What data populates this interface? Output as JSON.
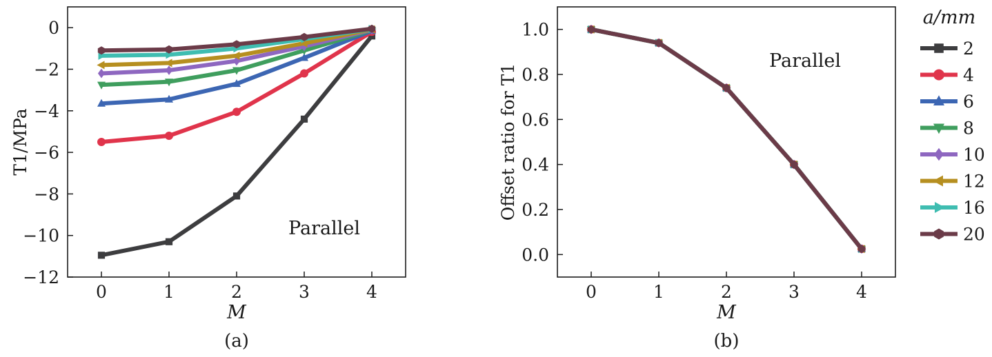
{
  "chart_data": [
    {
      "type": "line",
      "caption": "(a)",
      "xlabel": "M",
      "ylabel": "T1/MPa",
      "annotation": "Parallel",
      "x": [
        0,
        1,
        2,
        3,
        4
      ],
      "xlim": [
        -0.5,
        4.5
      ],
      "ylim": [
        -12,
        1
      ],
      "xticks": [
        "0",
        "1",
        "2",
        "3",
        "4"
      ],
      "yticks": [
        0,
        -2,
        -4,
        -6,
        -8,
        -10,
        -12
      ],
      "ytick_labels": [
        "0",
        "−2",
        "−4",
        "−6",
        "−8",
        "−10",
        "−12"
      ],
      "grid": false,
      "series": [
        {
          "name": "2",
          "values": [
            -10.95,
            -10.3,
            -8.1,
            -4.4,
            -0.4
          ]
        },
        {
          "name": "4",
          "values": [
            -5.5,
            -5.2,
            -4.05,
            -2.2,
            -0.2
          ]
        },
        {
          "name": "6",
          "values": [
            -3.65,
            -3.45,
            -2.7,
            -1.45,
            -0.15
          ]
        },
        {
          "name": "8",
          "values": [
            -2.75,
            -2.6,
            -2.05,
            -1.1,
            -0.12
          ]
        },
        {
          "name": "10",
          "values": [
            -2.2,
            -2.05,
            -1.6,
            -0.9,
            -0.1
          ]
        },
        {
          "name": "12",
          "values": [
            -1.8,
            -1.7,
            -1.35,
            -0.75,
            -0.08
          ]
        },
        {
          "name": "16",
          "values": [
            -1.35,
            -1.3,
            -1.0,
            -0.55,
            -0.06
          ]
        },
        {
          "name": "20",
          "values": [
            -1.1,
            -1.05,
            -0.8,
            -0.45,
            -0.05
          ]
        }
      ]
    },
    {
      "type": "line",
      "caption": "(b)",
      "xlabel": "M",
      "ylabel": "Offset ratio for T1",
      "annotation": "Parallel",
      "x": [
        0,
        1,
        2,
        3,
        4
      ],
      "xlim": [
        -0.5,
        4.5
      ],
      "ylim": [
        -0.1,
        1.1
      ],
      "xticks": [
        "0",
        "1",
        "2",
        "3",
        "4"
      ],
      "yticks": [
        0.0,
        0.2,
        0.4,
        0.6,
        0.8,
        1.0
      ],
      "ytick_labels": [
        "0.0",
        "0.2",
        "0.4",
        "0.6",
        "0.8",
        "1.0"
      ],
      "grid": false,
      "series": [
        {
          "name": "2",
          "values": [
            1.0,
            0.94,
            0.74,
            0.4,
            0.025
          ]
        },
        {
          "name": "4",
          "values": [
            1.0,
            0.94,
            0.74,
            0.4,
            0.025
          ]
        },
        {
          "name": "6",
          "values": [
            1.0,
            0.94,
            0.74,
            0.4,
            0.025
          ]
        },
        {
          "name": "8",
          "values": [
            1.0,
            0.94,
            0.74,
            0.4,
            0.025
          ]
        },
        {
          "name": "10",
          "values": [
            1.0,
            0.94,
            0.74,
            0.4,
            0.025
          ]
        },
        {
          "name": "12",
          "values": [
            1.0,
            0.94,
            0.74,
            0.4,
            0.025
          ]
        },
        {
          "name": "16",
          "values": [
            1.0,
            0.94,
            0.74,
            0.4,
            0.025
          ]
        },
        {
          "name": "20",
          "values": [
            1.0,
            0.94,
            0.74,
            0.4,
            0.025
          ]
        }
      ]
    }
  ],
  "legend": {
    "title": "a/mm",
    "placement": "right",
    "items": [
      {
        "label": "2",
        "color": "#3d3d3f",
        "marker": "square"
      },
      {
        "label": "4",
        "color": "#e0344b",
        "marker": "circle"
      },
      {
        "label": "6",
        "color": "#3c66b3",
        "marker": "triangle-up"
      },
      {
        "label": "8",
        "color": "#3f9e5e",
        "marker": "triangle-down"
      },
      {
        "label": "10",
        "color": "#8e67c0",
        "marker": "diamond"
      },
      {
        "label": "12",
        "color": "#b68f20",
        "marker": "triangle-left"
      },
      {
        "label": "16",
        "color": "#3fbdb1",
        "marker": "triangle-right"
      },
      {
        "label": "20",
        "color": "#6b3b48",
        "marker": "hexagon"
      }
    ]
  }
}
